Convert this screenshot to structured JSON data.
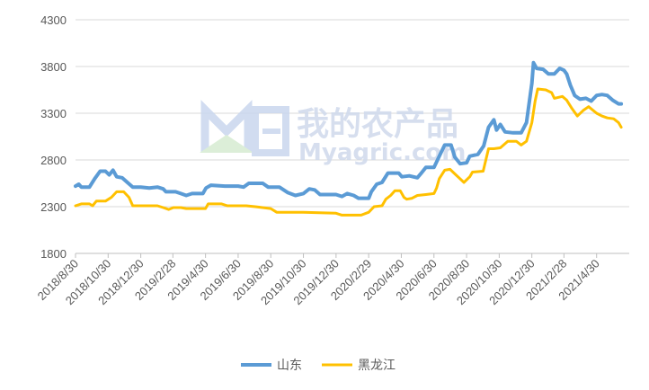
{
  "watermark": {
    "title": "我的农产品",
    "subtitle": "Myagric.com",
    "logo": "wm-logo-icon"
  },
  "chart_data": {
    "type": "line",
    "title": "",
    "xlabel": "",
    "ylabel": "",
    "ylim": [
      1800,
      4300
    ],
    "yticks": [
      1800,
      2300,
      2800,
      3300,
      3800,
      4300
    ],
    "xlim": [
      "2018-08-30",
      "2021-06-30"
    ],
    "xtick_labels": [
      "2018/8/30",
      "2018/10/30",
      "2018/12/30",
      "2019/2/28",
      "2019/4/30",
      "2019/6/30",
      "2019/8/30",
      "2019/10/30",
      "2019/12/30",
      "2020/2/29",
      "2020/4/30",
      "2020/6/30",
      "2020/8/30",
      "2020/10/30",
      "2020/12/30",
      "2021/2/28",
      "2021/4/30"
    ],
    "xtick_dates": [
      "2018-08-30",
      "2018-10-30",
      "2018-12-30",
      "2019-02-28",
      "2019-04-30",
      "2019-06-30",
      "2019-08-30",
      "2019-10-30",
      "2019-12-30",
      "2020-02-29",
      "2020-04-30",
      "2020-06-30",
      "2020-08-30",
      "2020-10-30",
      "2020-12-30",
      "2021-02-28",
      "2021-04-30"
    ],
    "grid": "horizontal",
    "legend": "bottom",
    "series": [
      {
        "name": "山东",
        "color": "#5b9bd5",
        "points": [
          [
            "2018-08-30",
            2520
          ],
          [
            "2018-09-05",
            2540
          ],
          [
            "2018-09-10",
            2510
          ],
          [
            "2018-09-25",
            2510
          ],
          [
            "2018-10-05",
            2600
          ],
          [
            "2018-10-15",
            2680
          ],
          [
            "2018-10-25",
            2680
          ],
          [
            "2018-11-01",
            2640
          ],
          [
            "2018-11-08",
            2690
          ],
          [
            "2018-11-15",
            2620
          ],
          [
            "2018-11-25",
            2610
          ],
          [
            "2018-12-05",
            2560
          ],
          [
            "2018-12-15",
            2510
          ],
          [
            "2018-12-30",
            2510
          ],
          [
            "2019-01-15",
            2500
          ],
          [
            "2019-01-30",
            2510
          ],
          [
            "2019-02-10",
            2490
          ],
          [
            "2019-02-15",
            2460
          ],
          [
            "2019-03-05",
            2460
          ],
          [
            "2019-03-15",
            2440
          ],
          [
            "2019-03-25",
            2420
          ],
          [
            "2019-04-05",
            2440
          ],
          [
            "2019-04-25",
            2440
          ],
          [
            "2019-05-01",
            2500
          ],
          [
            "2019-05-10",
            2530
          ],
          [
            "2019-06-05",
            2520
          ],
          [
            "2019-06-30",
            2520
          ],
          [
            "2019-07-10",
            2510
          ],
          [
            "2019-07-20",
            2550
          ],
          [
            "2019-08-15",
            2550
          ],
          [
            "2019-08-25",
            2510
          ],
          [
            "2019-09-15",
            2510
          ],
          [
            "2019-10-01",
            2450
          ],
          [
            "2019-10-15",
            2420
          ],
          [
            "2019-10-30",
            2440
          ],
          [
            "2019-11-10",
            2490
          ],
          [
            "2019-11-20",
            2480
          ],
          [
            "2019-11-30",
            2430
          ],
          [
            "2019-12-30",
            2430
          ],
          [
            "2020-01-10",
            2410
          ],
          [
            "2020-01-20",
            2440
          ],
          [
            "2020-02-01",
            2420
          ],
          [
            "2020-02-10",
            2390
          ],
          [
            "2020-02-29",
            2390
          ],
          [
            "2020-03-05",
            2460
          ],
          [
            "2020-03-15",
            2540
          ],
          [
            "2020-03-25",
            2560
          ],
          [
            "2020-04-05",
            2660
          ],
          [
            "2020-04-25",
            2660
          ],
          [
            "2020-05-01",
            2620
          ],
          [
            "2020-05-15",
            2630
          ],
          [
            "2020-05-30",
            2610
          ],
          [
            "2020-06-05",
            2650
          ],
          [
            "2020-06-15",
            2720
          ],
          [
            "2020-06-30",
            2720
          ],
          [
            "2020-07-10",
            2840
          ],
          [
            "2020-07-20",
            2960
          ],
          [
            "2020-08-01",
            2960
          ],
          [
            "2020-08-08",
            2830
          ],
          [
            "2020-08-18",
            2760
          ],
          [
            "2020-08-30",
            2770
          ],
          [
            "2020-09-05",
            2840
          ],
          [
            "2020-09-20",
            2860
          ],
          [
            "2020-10-01",
            2950
          ],
          [
            "2020-10-10",
            3150
          ],
          [
            "2020-10-20",
            3230
          ],
          [
            "2020-10-25",
            3120
          ],
          [
            "2020-11-01",
            3180
          ],
          [
            "2020-11-10",
            3100
          ],
          [
            "2020-11-25",
            3090
          ],
          [
            "2020-12-10",
            3090
          ],
          [
            "2020-12-20",
            3200
          ],
          [
            "2020-12-30",
            3620
          ],
          [
            "2021-01-02",
            3840
          ],
          [
            "2021-01-08",
            3780
          ],
          [
            "2021-01-20",
            3770
          ],
          [
            "2021-01-30",
            3720
          ],
          [
            "2021-02-10",
            3720
          ],
          [
            "2021-02-20",
            3780
          ],
          [
            "2021-02-28",
            3760
          ],
          [
            "2021-03-05",
            3720
          ],
          [
            "2021-03-12",
            3600
          ],
          [
            "2021-03-20",
            3490
          ],
          [
            "2021-03-30",
            3450
          ],
          [
            "2021-04-10",
            3460
          ],
          [
            "2021-04-20",
            3430
          ],
          [
            "2021-04-30",
            3490
          ],
          [
            "2021-05-10",
            3500
          ],
          [
            "2021-05-20",
            3490
          ],
          [
            "2021-05-30",
            3440
          ],
          [
            "2021-06-10",
            3400
          ],
          [
            "2021-06-15",
            3400
          ]
        ]
      },
      {
        "name": "黑龙江",
        "color": "#ffc000",
        "points": [
          [
            "2018-08-30",
            2310
          ],
          [
            "2018-09-10",
            2330
          ],
          [
            "2018-09-25",
            2330
          ],
          [
            "2018-10-01",
            2310
          ],
          [
            "2018-10-08",
            2360
          ],
          [
            "2018-10-25",
            2360
          ],
          [
            "2018-11-05",
            2400
          ],
          [
            "2018-11-15",
            2460
          ],
          [
            "2018-11-28",
            2460
          ],
          [
            "2018-12-08",
            2400
          ],
          [
            "2018-12-15",
            2310
          ],
          [
            "2018-12-30",
            2310
          ],
          [
            "2019-01-30",
            2310
          ],
          [
            "2019-02-10",
            2290
          ],
          [
            "2019-02-20",
            2270
          ],
          [
            "2019-03-01",
            2290
          ],
          [
            "2019-03-15",
            2290
          ],
          [
            "2019-03-25",
            2280
          ],
          [
            "2019-04-30",
            2280
          ],
          [
            "2019-05-05",
            2330
          ],
          [
            "2019-05-30",
            2330
          ],
          [
            "2019-06-10",
            2310
          ],
          [
            "2019-07-15",
            2310
          ],
          [
            "2019-08-01",
            2300
          ],
          [
            "2019-08-30",
            2280
          ],
          [
            "2019-09-10",
            2240
          ],
          [
            "2019-10-30",
            2240
          ],
          [
            "2019-12-30",
            2230
          ],
          [
            "2020-01-10",
            2210
          ],
          [
            "2020-02-15",
            2210
          ],
          [
            "2020-02-29",
            2240
          ],
          [
            "2020-03-10",
            2300
          ],
          [
            "2020-03-25",
            2310
          ],
          [
            "2020-04-01",
            2380
          ],
          [
            "2020-04-10",
            2420
          ],
          [
            "2020-04-18",
            2470
          ],
          [
            "2020-04-28",
            2470
          ],
          [
            "2020-05-05",
            2400
          ],
          [
            "2020-05-10",
            2380
          ],
          [
            "2020-05-20",
            2390
          ],
          [
            "2020-05-30",
            2420
          ],
          [
            "2020-06-15",
            2430
          ],
          [
            "2020-06-30",
            2440
          ],
          [
            "2020-07-05",
            2500
          ],
          [
            "2020-07-10",
            2600
          ],
          [
            "2020-07-20",
            2690
          ],
          [
            "2020-07-30",
            2700
          ],
          [
            "2020-08-10",
            2640
          ],
          [
            "2020-08-25",
            2560
          ],
          [
            "2020-09-05",
            2620
          ],
          [
            "2020-09-10",
            2670
          ],
          [
            "2020-09-30",
            2680
          ],
          [
            "2020-10-05",
            2800
          ],
          [
            "2020-10-10",
            2920
          ],
          [
            "2020-10-20",
            2920
          ],
          [
            "2020-11-01",
            2930
          ],
          [
            "2020-11-15",
            3000
          ],
          [
            "2020-12-01",
            3000
          ],
          [
            "2020-12-10",
            2960
          ],
          [
            "2020-12-20",
            3000
          ],
          [
            "2020-12-30",
            3200
          ],
          [
            "2021-01-05",
            3430
          ],
          [
            "2021-01-10",
            3560
          ],
          [
            "2021-01-25",
            3550
          ],
          [
            "2021-02-05",
            3520
          ],
          [
            "2021-02-10",
            3460
          ],
          [
            "2021-02-25",
            3480
          ],
          [
            "2021-03-05",
            3440
          ],
          [
            "2021-03-15",
            3350
          ],
          [
            "2021-03-25",
            3270
          ],
          [
            "2021-04-05",
            3330
          ],
          [
            "2021-04-15",
            3370
          ],
          [
            "2021-04-30",
            3300
          ],
          [
            "2021-05-10",
            3270
          ],
          [
            "2021-05-20",
            3250
          ],
          [
            "2021-06-01",
            3240
          ],
          [
            "2021-06-10",
            3200
          ],
          [
            "2021-06-15",
            3150
          ]
        ]
      }
    ]
  }
}
